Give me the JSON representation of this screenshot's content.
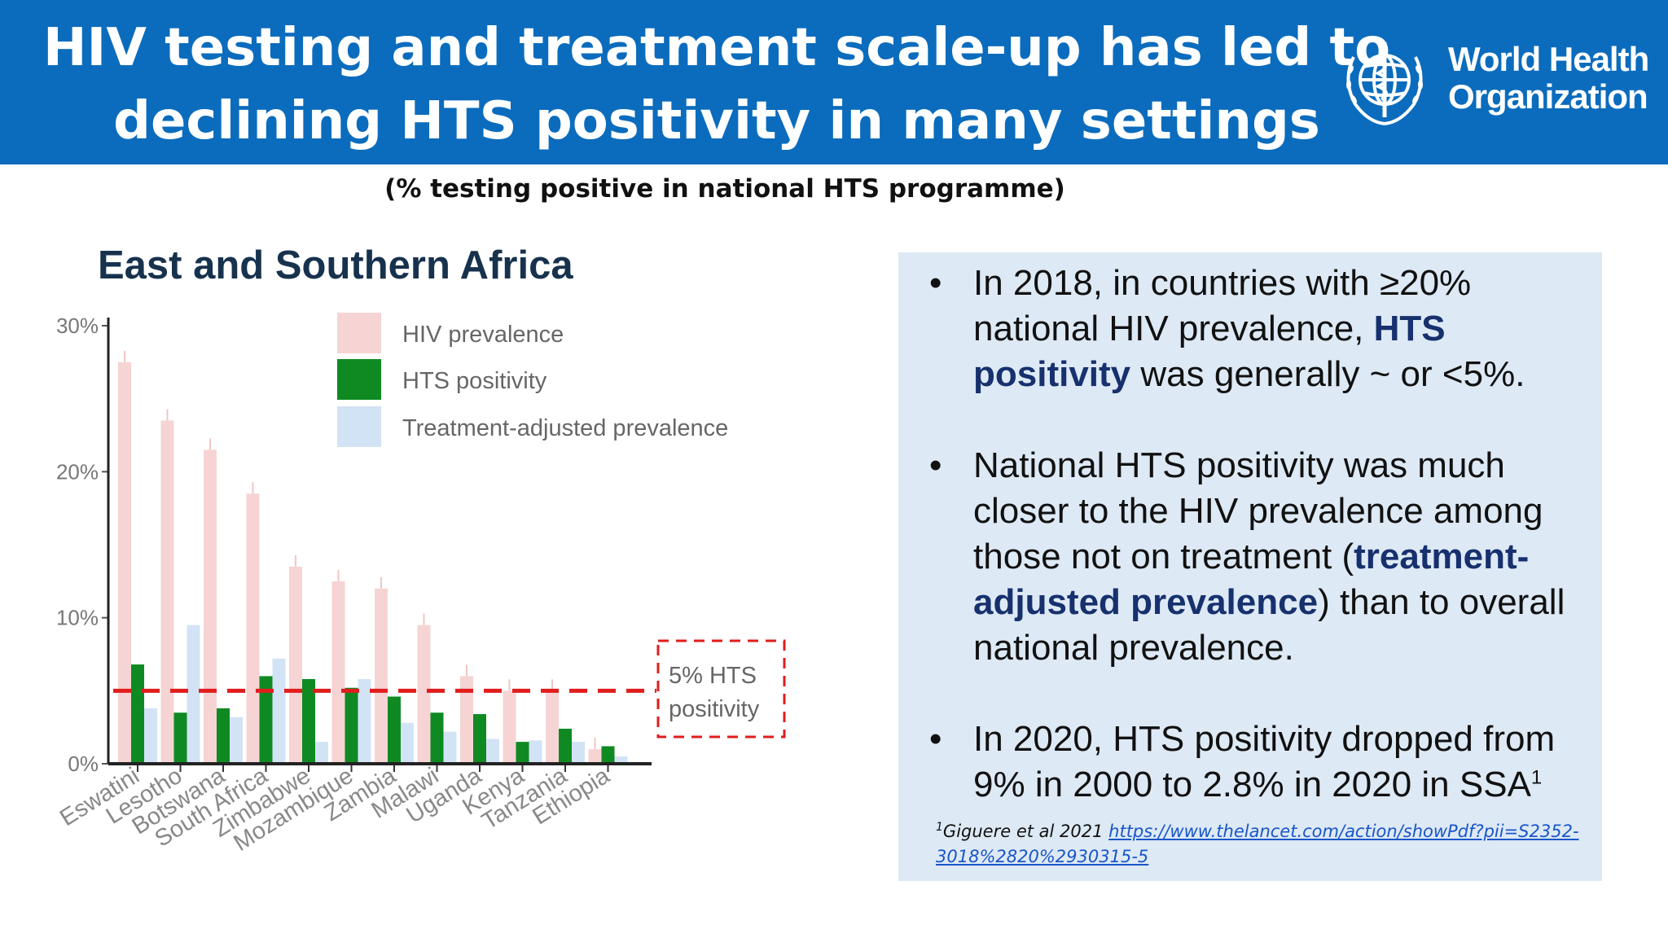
{
  "header": {
    "title_line1": "HIV testing and treatment scale-up has led to",
    "title_line2": "declining HTS positivity in many settings",
    "logo_line1": "World Health",
    "logo_line2": "Organization",
    "logo_icon": "who-emblem-icon"
  },
  "subtitle": "(% testing positive in national HTS programme)",
  "chart_title": "East and Southern Africa",
  "chart_data": {
    "type": "bar",
    "categories": [
      "Eswatini",
      "Lesotho",
      "Botswana",
      "South Africa",
      "Zimbabwe",
      "Mozambique",
      "Zambia",
      "Malawi",
      "Uganda",
      "Kenya",
      "Tanzania",
      "Ethiopia"
    ],
    "series": [
      {
        "name": "HIV prevalence",
        "color": "#f6d4d4",
        "values": [
          27.5,
          23.5,
          21.5,
          18.5,
          13.5,
          12.5,
          12,
          9.5,
          6,
          5,
          5,
          1
        ]
      },
      {
        "name": "HTS positivity",
        "color": "#0f8a23",
        "values": [
          6.8,
          3.5,
          3.8,
          6,
          5.8,
          5.2,
          4.6,
          3.5,
          3.4,
          1.5,
          2.4,
          1.2
        ]
      },
      {
        "name": "Treatment-adjusted prevalence",
        "color": "#d3e3f6",
        "values": [
          3.8,
          9.5,
          3.2,
          7.2,
          1.5,
          5.8,
          2.8,
          2.2,
          1.7,
          1.6,
          1.5,
          0.5
        ]
      }
    ],
    "ylim": [
      0,
      30
    ],
    "yticks": [
      0,
      10,
      20,
      30
    ],
    "ytick_labels": [
      "0%",
      "10%",
      "20%",
      "30%"
    ],
    "reference_line": {
      "value": 5,
      "label_line1": "5% HTS",
      "label_line2": "positivity",
      "color": "#e11d1d"
    },
    "legend_position": "top-right",
    "grid": false
  },
  "info": {
    "b1_t1": "In 2018, in countries with ≥20% national HIV prevalence, ",
    "b1_hl": "HTS positivity",
    "b1_t2": " was generally ~ or <5%.",
    "b2_t1": "National HTS positivity was much closer to the HIV prevalence among those not on treatment (",
    "b2_hl": "treatment-adjusted prevalence",
    "b2_t2": ") than to overall national prevalence.",
    "b3_t1": "In 2020, HTS positivity dropped from 9% in 2000 to 2.8% in 2020 in SSA",
    "b3_sup": "1",
    "bullet": "•"
  },
  "footnote": {
    "sup": "1",
    "text": "Giguere et al  2021 ",
    "link": "https://www.thelancet.com/action/showPdf?pii=S2352-3018%2820%2930315-5"
  }
}
